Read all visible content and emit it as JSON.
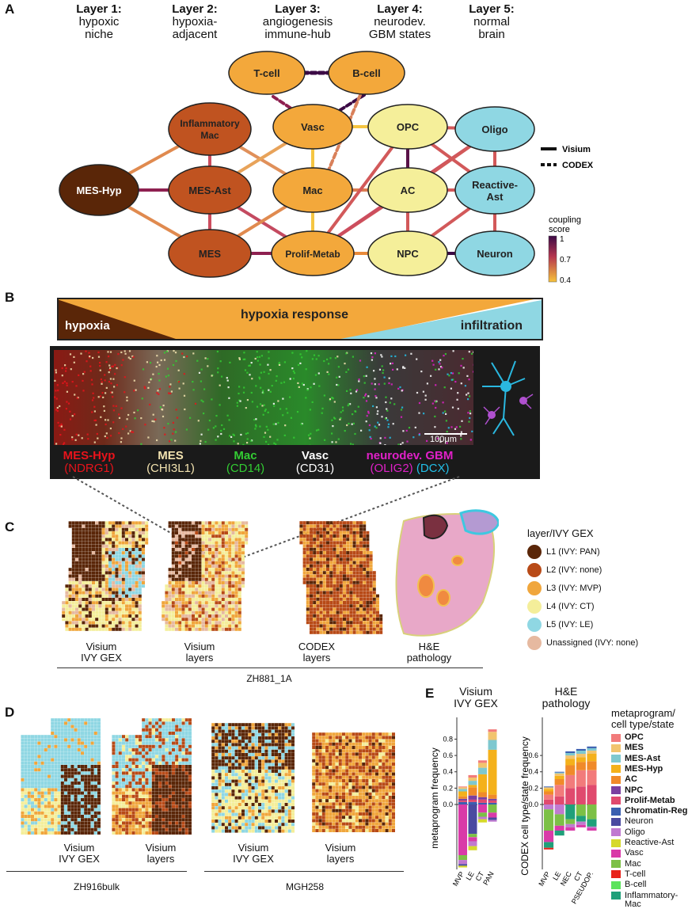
{
  "panels": {
    "a": "A",
    "b": "B",
    "c": "C",
    "d": "D",
    "e": "E"
  },
  "layers": [
    {
      "title": "Layer 1:",
      "sub": "hypoxic",
      "sub2": "niche"
    },
    {
      "title": "Layer 2:",
      "sub": "hypoxia-",
      "sub2": "adjacent"
    },
    {
      "title": "Layer 3:",
      "sub": "angiogenesis",
      "sub2": "immune-hub"
    },
    {
      "title": "Layer 4:",
      "sub": "neurodev.",
      "sub2": "GBM states"
    },
    {
      "title": "Layer 5:",
      "sub": "normal",
      "sub2": "brain"
    }
  ],
  "nodes": {
    "tcell": "T-cell",
    "bcell": "B-cell",
    "infl1": "Inflammatory",
    "infl2": "Mac",
    "vasc": "Vasc",
    "opc": "OPC",
    "oligo": "Oligo",
    "meshyp": "MES-Hyp",
    "mesast": "MES-Ast",
    "mac": "Mac",
    "ac": "AC",
    "react1": "Reactive-",
    "react2": "Ast",
    "mes": "MES",
    "prolif": "Prolif-Metab",
    "npc": "NPC",
    "neuron": "Neuron"
  },
  "edge_legend": {
    "visium": "Visium",
    "codex": "CODEX"
  },
  "coupling": {
    "title1": "coupling",
    "title2": "score",
    "max": "1",
    "mid": "0.7",
    "min": "0.4"
  },
  "banner": {
    "hypoxia": "hypoxia",
    "response": "hypoxia response",
    "infiltration": "infiltration"
  },
  "scalebar": "100μm",
  "channels": [
    {
      "name": "MES-Hyp",
      "marker": "(NDRG1)",
      "color": "#e8131b"
    },
    {
      "name": "MES",
      "marker": "(CHI3L1)",
      "color": "#f3e3b0"
    },
    {
      "name": "Mac",
      "marker": "(CD14)",
      "color": "#33cc33"
    },
    {
      "name": "Vasc",
      "marker": "(CD31)",
      "color": "#ffffff"
    },
    {
      "name": "neurodev. GBM",
      "marker1": "(OLIG2)",
      "marker2": "(DCX)",
      "color": "#e020c8",
      "color2": "#22c0e8"
    }
  ],
  "layer_legend": {
    "title": "layer/IVY GEX",
    "items": [
      {
        "label": "L1 (IVY: PAN)",
        "color": "#5a2608"
      },
      {
        "label": "L2 (IVY: none)",
        "color": "#b84a17"
      },
      {
        "label": "L3 (IVY: MVP)",
        "color": "#f0a63c"
      },
      {
        "label": "L4 (IVY: CT)",
        "color": "#f4ee9a"
      },
      {
        "label": "L5 (IVY: LE)",
        "color": "#8fd7e3"
      },
      {
        "label": "Unassigned (IVY: none)",
        "color": "#e6b9a0"
      }
    ]
  },
  "panel_c": {
    "captions": [
      {
        "l1": "Visium",
        "l2": "IVY GEX"
      },
      {
        "l1": "Visium",
        "l2": "layers"
      },
      {
        "l1": "CODEX",
        "l2": "layers"
      },
      {
        "l1": "H&E",
        "l2": "pathology"
      }
    ],
    "sample": "ZH881_1A"
  },
  "panel_d": {
    "captions": [
      {
        "l1": "Visium",
        "l2": "IVY GEX"
      },
      {
        "l1": "Visium",
        "l2": "layers"
      },
      {
        "l1": "Visium",
        "l2": "IVY GEX"
      },
      {
        "l1": "Visium",
        "l2": "layers"
      }
    ],
    "samples": [
      "ZH916bulk",
      "MGH258"
    ]
  },
  "panel_e": {
    "left_title1": "Visium",
    "left_title2": "IVY GEX",
    "right_title1": "H&E",
    "right_title2": "pathology",
    "left_ylabel": "metaprogram frequency",
    "right_ylabel": "CODEX cell type/state frequency",
    "legend_title1": "metaprogram/",
    "legend_title2": "cell type/state",
    "legend": [
      {
        "label": "OPC",
        "color": "#f27b7b",
        "bold": true
      },
      {
        "label": "MES",
        "color": "#f2c46e",
        "bold": true
      },
      {
        "label": "MES-Ast",
        "color": "#7ec8cf",
        "bold": true
      },
      {
        "label": "MES-Hyp",
        "color": "#f4b11b",
        "bold": true
      },
      {
        "label": "AC",
        "color": "#f08a2a",
        "bold": true
      },
      {
        "label": "NPC",
        "color": "#7b3fa0",
        "bold": true
      },
      {
        "label": "Prolif-Metab",
        "color": "#e04a6e",
        "bold": true
      },
      {
        "label": "Chromatin-Reg",
        "color": "#3a5fb0",
        "bold": true
      },
      {
        "label": "Neuron",
        "color": "#4a4aa0",
        "bold": false
      },
      {
        "label": "Oligo",
        "color": "#c07ad0",
        "bold": false
      },
      {
        "label": "Reactive-Ast",
        "color": "#d6d92a",
        "bold": false
      },
      {
        "label": "Vasc",
        "color": "#d93aa8",
        "bold": false
      },
      {
        "label": "Mac",
        "color": "#7cc046",
        "bold": false
      },
      {
        "label": "T-cell",
        "color": "#e8231b",
        "bold": false
      },
      {
        "label": "B-cell",
        "color": "#5ce35c",
        "bold": false
      },
      {
        "label": "Inflammatory-",
        "label2": "Mac",
        "color": "#1fa07a",
        "bold": false
      }
    ]
  },
  "chart_data": [
    {
      "type": "bar",
      "stacked": true,
      "ylabel": "metaprogram frequency",
      "categories": [
        "MVP",
        "LE",
        "CT",
        "PAN"
      ],
      "yticks": [
        "0.0",
        "0.2",
        "0.4",
        "0.6",
        "0.8"
      ],
      "ylim": [
        -0.8,
        0.95
      ],
      "up": [
        [
          [
            "#3a5fb0",
            0.03
          ],
          [
            "#e04a6e",
            0.02
          ],
          [
            "#7b3fa0",
            0.02
          ],
          [
            "#f08a2a",
            0.03
          ],
          [
            "#f4b11b",
            0.06
          ],
          [
            "#7ec8cf",
            0.03
          ],
          [
            "#f2c46e",
            0.02
          ],
          [
            "#f27b7b",
            0.01
          ]
        ],
        [
          [
            "#3a5fb0",
            0.03
          ],
          [
            "#e04a6e",
            0.03
          ],
          [
            "#7b3fa0",
            0.05
          ],
          [
            "#f08a2a",
            0.1
          ],
          [
            "#f4b11b",
            0.03
          ],
          [
            "#7ec8cf",
            0.05
          ],
          [
            "#f2c46e",
            0.04
          ],
          [
            "#f27b7b",
            0.03
          ]
        ],
        [
          [
            "#3a5fb0",
            0.02
          ],
          [
            "#e04a6e",
            0.04
          ],
          [
            "#7b3fa0",
            0.03
          ],
          [
            "#f08a2a",
            0.06
          ],
          [
            "#f4b11b",
            0.22
          ],
          [
            "#7ec8cf",
            0.08
          ],
          [
            "#f2c46e",
            0.06
          ],
          [
            "#f27b7b",
            0.03
          ]
        ],
        [
          [
            "#3a5fb0",
            0.02
          ],
          [
            "#e04a6e",
            0.03
          ],
          [
            "#7b3fa0",
            0.02
          ],
          [
            "#f08a2a",
            0.05
          ],
          [
            "#f4b11b",
            0.55
          ],
          [
            "#7ec8cf",
            0.12
          ],
          [
            "#f2c46e",
            0.1
          ],
          [
            "#f27b7b",
            0.03
          ]
        ]
      ],
      "down": [
        [
          [
            "#d93aa8",
            0.62
          ],
          [
            "#7cc046",
            0.06
          ],
          [
            "#c07ad0",
            0.05
          ],
          [
            "#4a4aa0",
            0.02
          ],
          [
            "#d6d92a",
            0.02
          ]
        ],
        [
          [
            "#4a4aa0",
            0.36
          ],
          [
            "#7cc046",
            0.04
          ],
          [
            "#d93aa8",
            0.05
          ],
          [
            "#c07ad0",
            0.06
          ],
          [
            "#d6d92a",
            0.05
          ]
        ],
        [
          [
            "#d93aa8",
            0.1
          ],
          [
            "#7cc046",
            0.05
          ],
          [
            "#c07ad0",
            0.03
          ],
          [
            "#d6d92a",
            0.04
          ]
        ],
        [
          [
            "#7cc046",
            0.1
          ],
          [
            "#d93aa8",
            0.06
          ],
          [
            "#4a4aa0",
            0.03
          ],
          [
            "#c07ad0",
            0.02
          ]
        ]
      ]
    },
    {
      "type": "bar",
      "stacked": true,
      "ylabel": "CODEX cell type/state frequency",
      "categories": [
        "MVP",
        "LE",
        "NEC",
        "CT",
        "PSEUDOP."
      ],
      "yticks": [
        "0.0",
        "0.2",
        "0.4",
        "0.6"
      ],
      "ylim": [
        -0.8,
        0.95
      ],
      "up": [
        [
          [
            "#e04a6e",
            0.06
          ],
          [
            "#f27b7b",
            0.06
          ],
          [
            "#f08a2a",
            0.04
          ],
          [
            "#f4b11b",
            0.03
          ],
          [
            "#f2c46e",
            0.02
          ],
          [
            "#3a5fb0",
            0.01
          ]
        ],
        [
          [
            "#e04a6e",
            0.1
          ],
          [
            "#f27b7b",
            0.14
          ],
          [
            "#f08a2a",
            0.07
          ],
          [
            "#f4b11b",
            0.04
          ],
          [
            "#f2c46e",
            0.03
          ],
          [
            "#7ec8cf",
            0.01
          ],
          [
            "#3a5fb0",
            0.01
          ]
        ],
        [
          [
            "#e04a6e",
            0.2
          ],
          [
            "#f27b7b",
            0.16
          ],
          [
            "#f08a2a",
            0.12
          ],
          [
            "#f4b11b",
            0.08
          ],
          [
            "#f2c46e",
            0.04
          ],
          [
            "#7ec8cf",
            0.03
          ],
          [
            "#3a5fb0",
            0.02
          ]
        ],
        [
          [
            "#e04a6e",
            0.22
          ],
          [
            "#f27b7b",
            0.2
          ],
          [
            "#f08a2a",
            0.1
          ],
          [
            "#f4b11b",
            0.06
          ],
          [
            "#f2c46e",
            0.04
          ],
          [
            "#7ec8cf",
            0.04
          ],
          [
            "#3a5fb0",
            0.02
          ]
        ],
        [
          [
            "#e04a6e",
            0.24
          ],
          [
            "#f27b7b",
            0.18
          ],
          [
            "#f08a2a",
            0.11
          ],
          [
            "#f4b11b",
            0.09
          ],
          [
            "#f2c46e",
            0.04
          ],
          [
            "#7ec8cf",
            0.03
          ],
          [
            "#3a5fb0",
            0.02
          ]
        ]
      ],
      "down": [
        [
          [
            "#c07ad0",
            0.06
          ],
          [
            "#7cc046",
            0.26
          ],
          [
            "#d93aa8",
            0.14
          ],
          [
            "#1fa07a",
            0.07
          ],
          [
            "#e8231b",
            0.02
          ]
        ],
        [
          [
            "#c07ad0",
            0.12
          ],
          [
            "#7cc046",
            0.14
          ],
          [
            "#d93aa8",
            0.06
          ],
          [
            "#1fa07a",
            0.06
          ]
        ],
        [
          [
            "#1fa07a",
            0.18
          ],
          [
            "#7cc046",
            0.06
          ],
          [
            "#c07ad0",
            0.04
          ],
          [
            "#d93aa8",
            0.04
          ]
        ],
        [
          [
            "#7cc046",
            0.14
          ],
          [
            "#1fa07a",
            0.07
          ],
          [
            "#c07ad0",
            0.04
          ],
          [
            "#d93aa8",
            0.03
          ]
        ],
        [
          [
            "#7cc046",
            0.18
          ],
          [
            "#1fa07a",
            0.09
          ],
          [
            "#c07ad0",
            0.02
          ],
          [
            "#d93aa8",
            0.03
          ]
        ]
      ]
    }
  ]
}
